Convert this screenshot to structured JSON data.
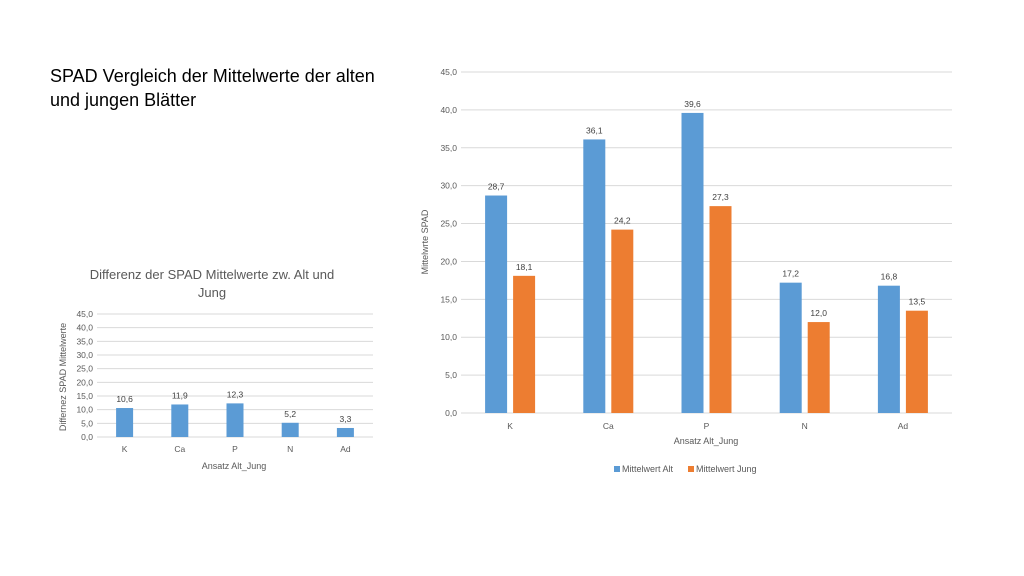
{
  "slide": {
    "title": "SPAD Vergleich der Mittelwerte der alten und jungen Blätter"
  },
  "colors": {
    "blue": "#5b9bd5",
    "orange": "#ed7d31",
    "grid": "#d9d9d9",
    "text": "#595959"
  },
  "chart_data": [
    {
      "type": "bar",
      "title": "Differenz der SPAD Mittelwerte zw. Alt und Jung",
      "title_lines": [
        "Differenz der SPAD Mittelwerte zw. Alt und",
        "Jung"
      ],
      "xlabel": "Ansatz Alt_Jung",
      "ylabel": "Differnez SPAD Mittelwerte",
      "categories": [
        "K",
        "Ca",
        "P",
        "N",
        "Ad"
      ],
      "series": [
        {
          "values": [
            10.6,
            11.9,
            12.3,
            5.2,
            3.3
          ],
          "labels": [
            "10,6",
            "11,9",
            "12,3",
            "5,2",
            "3,3"
          ]
        }
      ],
      "ylim": [
        0,
        45
      ],
      "yticks": [
        "0,0",
        "5,0",
        "10,0",
        "15,0",
        "20,0",
        "25,0",
        "30,0",
        "35,0",
        "40,0",
        "45,0"
      ],
      "grid": true,
      "legend": "none"
    },
    {
      "type": "bar",
      "title": "",
      "xlabel": "Ansatz Alt_Jung",
      "ylabel": "Mittelwrte SPAD",
      "categories": [
        "K",
        "Ca",
        "P",
        "N",
        "Ad"
      ],
      "series": [
        {
          "name": "Mittelwert Alt",
          "values": [
            28.7,
            36.1,
            39.6,
            17.2,
            16.8
          ],
          "labels": [
            "28,7",
            "36,1",
            "39,6",
            "17,2",
            "16,8"
          ]
        },
        {
          "name": "Mittelwert Jung",
          "values": [
            18.1,
            24.2,
            27.3,
            12.0,
            13.5
          ],
          "labels": [
            "18,1",
            "24,2",
            "27,3",
            "12,0",
            "13,5"
          ]
        }
      ],
      "ylim": [
        0,
        45
      ],
      "yticks": [
        "0,0",
        "5,0",
        "10,0",
        "15,0",
        "20,0",
        "25,0",
        "30,0",
        "35,0",
        "40,0",
        "45,0"
      ],
      "grid": true,
      "legend": "bottom"
    }
  ]
}
